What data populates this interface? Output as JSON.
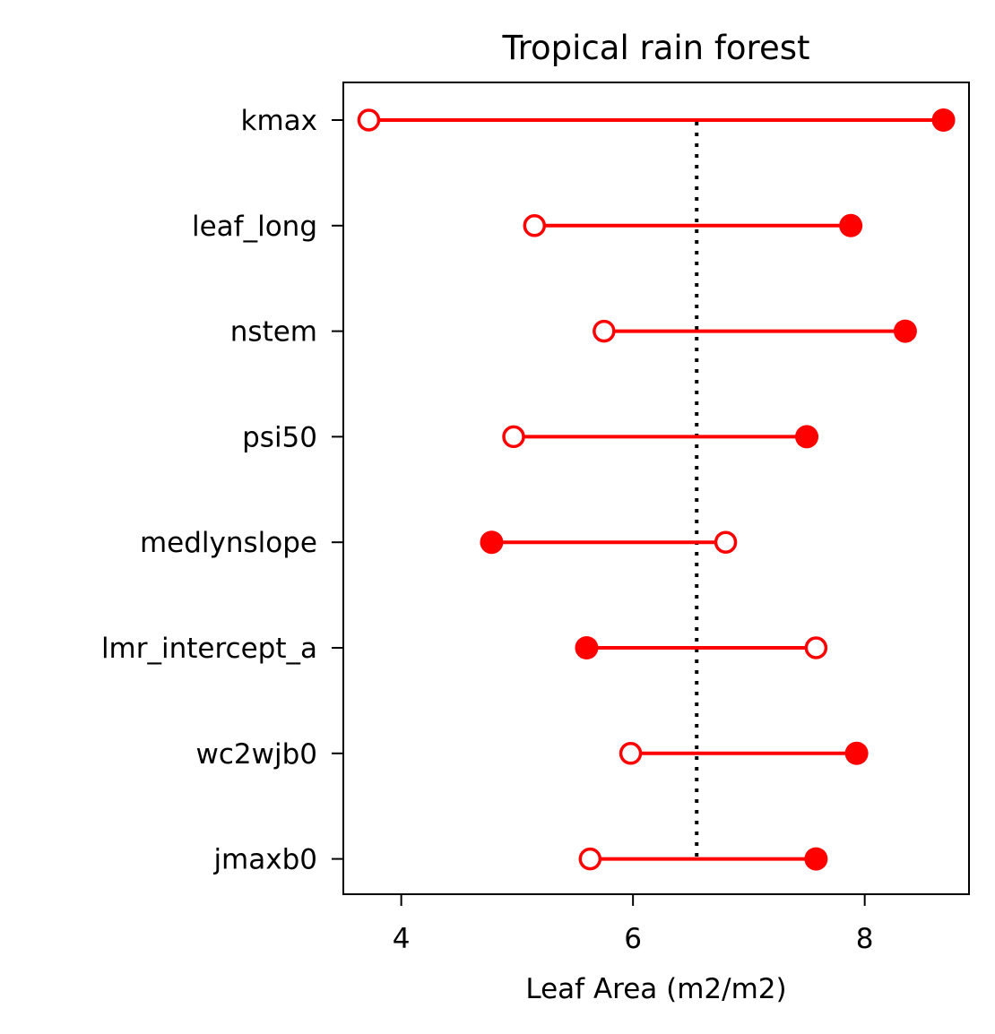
{
  "chart_data": {
    "type": "dumbbell",
    "title": "Tropical rain forest",
    "xlabel": "Leaf Area (m2/m2)",
    "ylabel": "",
    "xlim": [
      3.5,
      8.9
    ],
    "xticks": [
      4,
      6,
      8
    ],
    "reference_line": 6.55,
    "colors": {
      "series": "#ff0000",
      "reference": "#000000"
    },
    "categories": [
      "kmax",
      "leaf_long",
      "nstem",
      "psi50",
      "medlynslope",
      "lmr_intercept_a",
      "wc2wjb0",
      "jmaxb0"
    ],
    "series": [
      {
        "marker": "open-circle",
        "values": [
          3.72,
          5.15,
          5.75,
          4.97,
          6.8,
          7.58,
          5.98,
          5.63
        ]
      },
      {
        "marker": "filled-circle",
        "values": [
          8.68,
          7.88,
          8.35,
          7.5,
          4.78,
          5.6,
          7.93,
          7.58
        ]
      }
    ]
  }
}
